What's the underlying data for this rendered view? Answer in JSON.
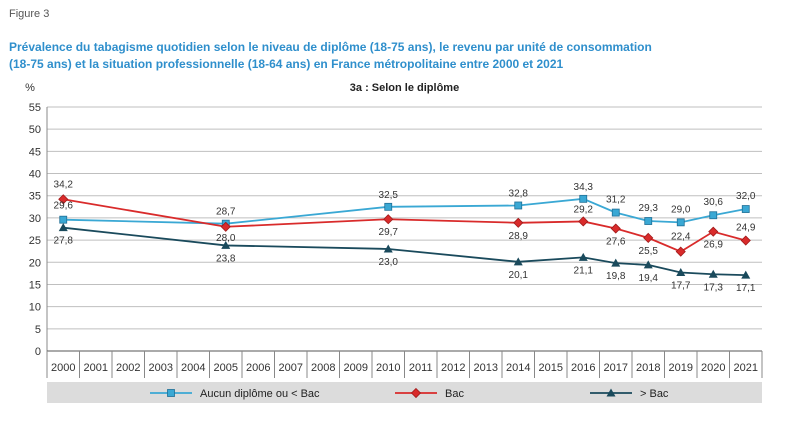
{
  "figure_label": "Figure 3",
  "title_line1": "Prévalence du tabagisme quotidien selon le niveau de diplôme (18-75 ans), le revenu par unité de consommation",
  "title_line2": "(18-75 ans) et la situation professionnelle (18-64 ans) en France métropolitaine entre 2000 et 2021",
  "colors": {
    "aucun": "#3aa8d4",
    "bac": "#d92b2b",
    "sup_bac": "#1a4a5c",
    "grid": "#bfbfbf",
    "legend_bg": "#dcdcdc"
  },
  "chart_data": {
    "type": "line",
    "subtitle": "3a : Selon le diplôme",
    "ylabel": "%",
    "ylim": [
      0,
      55
    ],
    "yticks": [
      "0",
      "5",
      "10",
      "15",
      "20",
      "25",
      "30",
      "35",
      "40",
      "45",
      "50",
      "55"
    ],
    "categories": [
      "2000",
      "2001",
      "2002",
      "2003",
      "2004",
      "2005",
      "2006",
      "2007",
      "2008",
      "2009",
      "2010",
      "2011",
      "2012",
      "2013",
      "2014",
      "2015",
      "2016",
      "2017",
      "2018",
      "2019",
      "2020",
      "2021"
    ],
    "grid": true,
    "legend_position": "bottom",
    "series": [
      {
        "name": "Aucun diplôme ou < Bac",
        "marker": "square",
        "color": "#3aa8d4",
        "points": [
          [
            2000,
            29.6
          ],
          [
            2005,
            28.7
          ],
          [
            2010,
            32.5
          ],
          [
            2014,
            32.8
          ],
          [
            2016,
            34.3
          ],
          [
            2017,
            31.2
          ],
          [
            2018,
            29.3
          ],
          [
            2019,
            29.0
          ],
          [
            2020,
            30.6
          ],
          [
            2021,
            32.0
          ]
        ],
        "labels": [
          "29,6",
          "28,7",
          "32,5",
          "32,8",
          "34,3",
          "31,2",
          "29,3",
          "29,0",
          "30,6",
          "32,0"
        ]
      },
      {
        "name": "Bac",
        "marker": "diamond",
        "color": "#d92b2b",
        "points": [
          [
            2000,
            34.2
          ],
          [
            2005,
            28.0
          ],
          [
            2010,
            29.7
          ],
          [
            2014,
            28.9
          ],
          [
            2016,
            29.2
          ],
          [
            2017,
            27.6
          ],
          [
            2018,
            25.5
          ],
          [
            2019,
            22.4
          ],
          [
            2020,
            26.9
          ],
          [
            2021,
            24.9
          ]
        ],
        "labels": [
          "34,2",
          "28,0",
          "29,7",
          "28,9",
          "29,2",
          "27,6",
          "25,5",
          "22,4",
          "26,9",
          "24,9"
        ]
      },
      {
        "name": "> Bac",
        "marker": "triangle",
        "color": "#1a4a5c",
        "points": [
          [
            2000,
            27.8
          ],
          [
            2005,
            23.8
          ],
          [
            2010,
            23.0
          ],
          [
            2014,
            20.1
          ],
          [
            2016,
            21.1
          ],
          [
            2017,
            19.8
          ],
          [
            2018,
            19.4
          ],
          [
            2019,
            17.7
          ],
          [
            2020,
            17.3
          ],
          [
            2021,
            17.1
          ]
        ],
        "labels": [
          "27,8",
          "23,8",
          "23,0",
          "20,1",
          "21,1",
          "19,8",
          "19,4",
          "17,7",
          "17,3",
          "17,1"
        ]
      }
    ]
  }
}
